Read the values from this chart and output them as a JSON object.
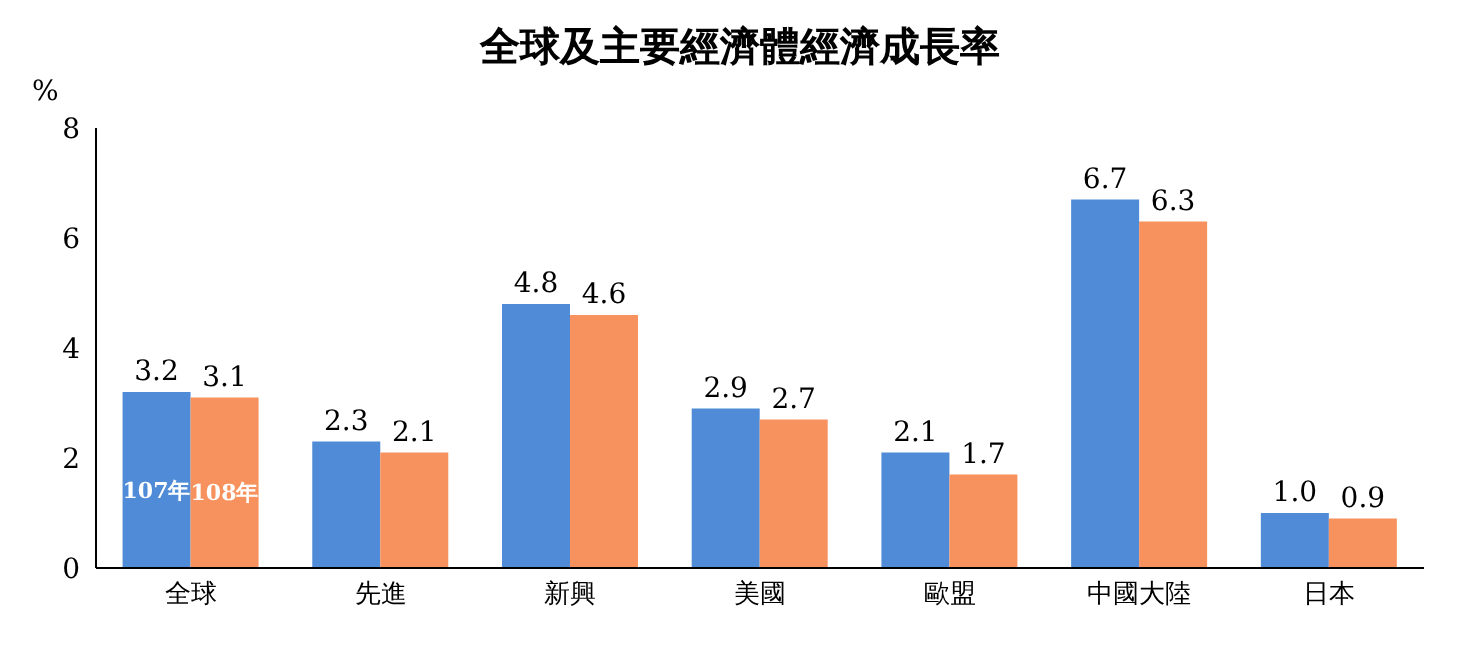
{
  "chart_data": {
    "type": "bar",
    "title": "全球及主要經濟體經濟成長率",
    "ylabel": "%",
    "categories": [
      "全球",
      "先進",
      "新興",
      "美國",
      "歐盟",
      "中國大陸",
      "日本"
    ],
    "series": [
      {
        "name": "107年",
        "color": "#4f8bd6",
        "values": [
          3.2,
          2.3,
          4.8,
          2.9,
          2.1,
          6.7,
          1.0
        ],
        "value_labels": [
          "3.2",
          "2.3",
          "4.8",
          "2.9",
          "2.1",
          "6.7",
          "1.0"
        ]
      },
      {
        "name": "108年",
        "color": "#f7925e",
        "values": [
          3.1,
          2.1,
          4.6,
          2.7,
          1.7,
          6.3,
          0.9
        ],
        "value_labels": [
          "3.1",
          "2.1",
          "4.6",
          "2.7",
          "1.7",
          "6.3",
          "0.9"
        ]
      }
    ],
    "ylim": [
      0,
      8
    ],
    "yticks": [
      0,
      2,
      4,
      6,
      8
    ],
    "grid": false
  }
}
